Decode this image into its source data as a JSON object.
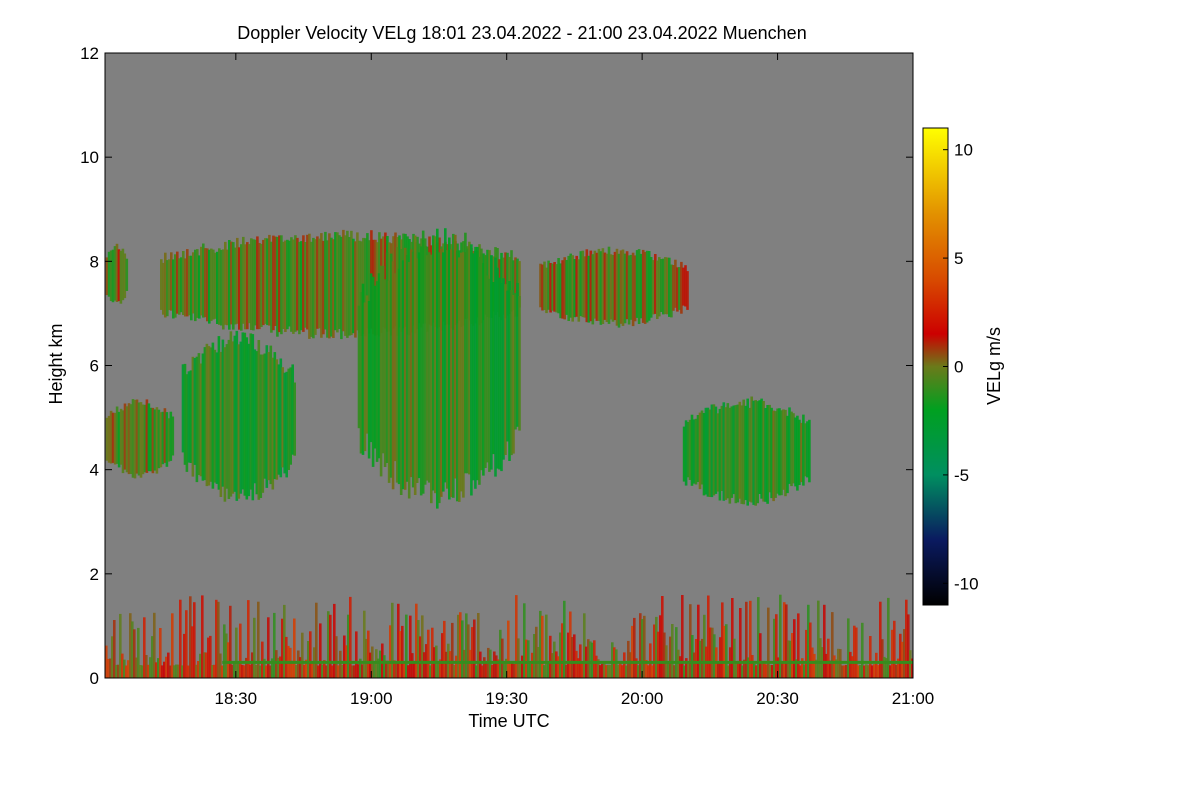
{
  "chart_data": {
    "type": "heatmap",
    "title": "Doppler Velocity VELg   18:01 23.04.2022 - 21:00 23.04.2022 Muenchen",
    "xlabel": "Time UTC",
    "ylabel": "Height km",
    "x_range_hours": [
      18.017,
      21.0
    ],
    "ylim": [
      0,
      12
    ],
    "x_ticks": [
      {
        "label": "18:30",
        "value": 18.5
      },
      {
        "label": "19:00",
        "value": 19.0
      },
      {
        "label": "19:30",
        "value": 19.5
      },
      {
        "label": "20:00",
        "value": 20.0
      },
      {
        "label": "20:30",
        "value": 20.5
      },
      {
        "label": "21:00",
        "value": 21.0
      }
    ],
    "y_ticks": [
      {
        "label": "0",
        "value": 0
      },
      {
        "label": "2",
        "value": 2
      },
      {
        "label": "4",
        "value": 4
      },
      {
        "label": "6",
        "value": 6
      },
      {
        "label": "8",
        "value": 8
      },
      {
        "label": "10",
        "value": 10
      },
      {
        "label": "12",
        "value": 12
      }
    ],
    "background_color": "#808080",
    "colorbar": {
      "label": "VELg m/s",
      "range": [
        -11,
        11
      ],
      "ticks": [
        {
          "label": "10",
          "value": 10
        },
        {
          "label": "5",
          "value": 5
        },
        {
          "label": "0",
          "value": 0
        },
        {
          "label": "-5",
          "value": -5
        },
        {
          "label": "-10",
          "value": -10
        }
      ],
      "stops": [
        {
          "value": -11,
          "color": "#000000"
        },
        {
          "value": -8,
          "color": "#0a1a60"
        },
        {
          "value": -5,
          "color": "#008f60"
        },
        {
          "value": -2,
          "color": "#00a020"
        },
        {
          "value": 0,
          "color": "#6b7a1a"
        },
        {
          "value": 1.5,
          "color": "#cc0000"
        },
        {
          "value": 4,
          "color": "#d84a00"
        },
        {
          "value": 7,
          "color": "#e29000"
        },
        {
          "value": 11,
          "color": "#ffff00"
        }
      ]
    },
    "echo_regions": [
      {
        "name": "upper-cloud-deck",
        "start": 18.22,
        "end": 19.55,
        "bottom": 6.6,
        "top": 8.5,
        "velocity": -0.5
      },
      {
        "name": "main-cirrus-column",
        "start": 18.95,
        "end": 19.55,
        "bottom": 3.5,
        "top": 8.4,
        "velocity": -1.3
      },
      {
        "name": "slanted-fallstreak",
        "start": 18.3,
        "end": 18.72,
        "bottom": 3.5,
        "top": 6.5,
        "velocity": -1.5
      },
      {
        "name": "left-low-patch",
        "start": 18.02,
        "end": 18.27,
        "bottom": 3.9,
        "top": 5.3,
        "velocity": -0.4
      },
      {
        "name": "left-high-patch",
        "start": 18.02,
        "end": 18.1,
        "bottom": 7.2,
        "top": 8.3,
        "velocity": -0.2
      },
      {
        "name": "evening-upper-patch",
        "start": 19.62,
        "end": 20.17,
        "bottom": 6.8,
        "top": 8.2,
        "velocity": -0.3
      },
      {
        "name": "evening-mid-patch",
        "start": 20.15,
        "end": 20.62,
        "bottom": 3.4,
        "top": 5.3,
        "velocity": -1.4
      },
      {
        "name": "boundary-layer-clutter",
        "start": 18.017,
        "end": 21.0,
        "bottom": 0.0,
        "top": 1.6,
        "velocity": 1.5
      }
    ],
    "surface_line": {
      "height": 0.3,
      "velocity": -1.0
    }
  }
}
